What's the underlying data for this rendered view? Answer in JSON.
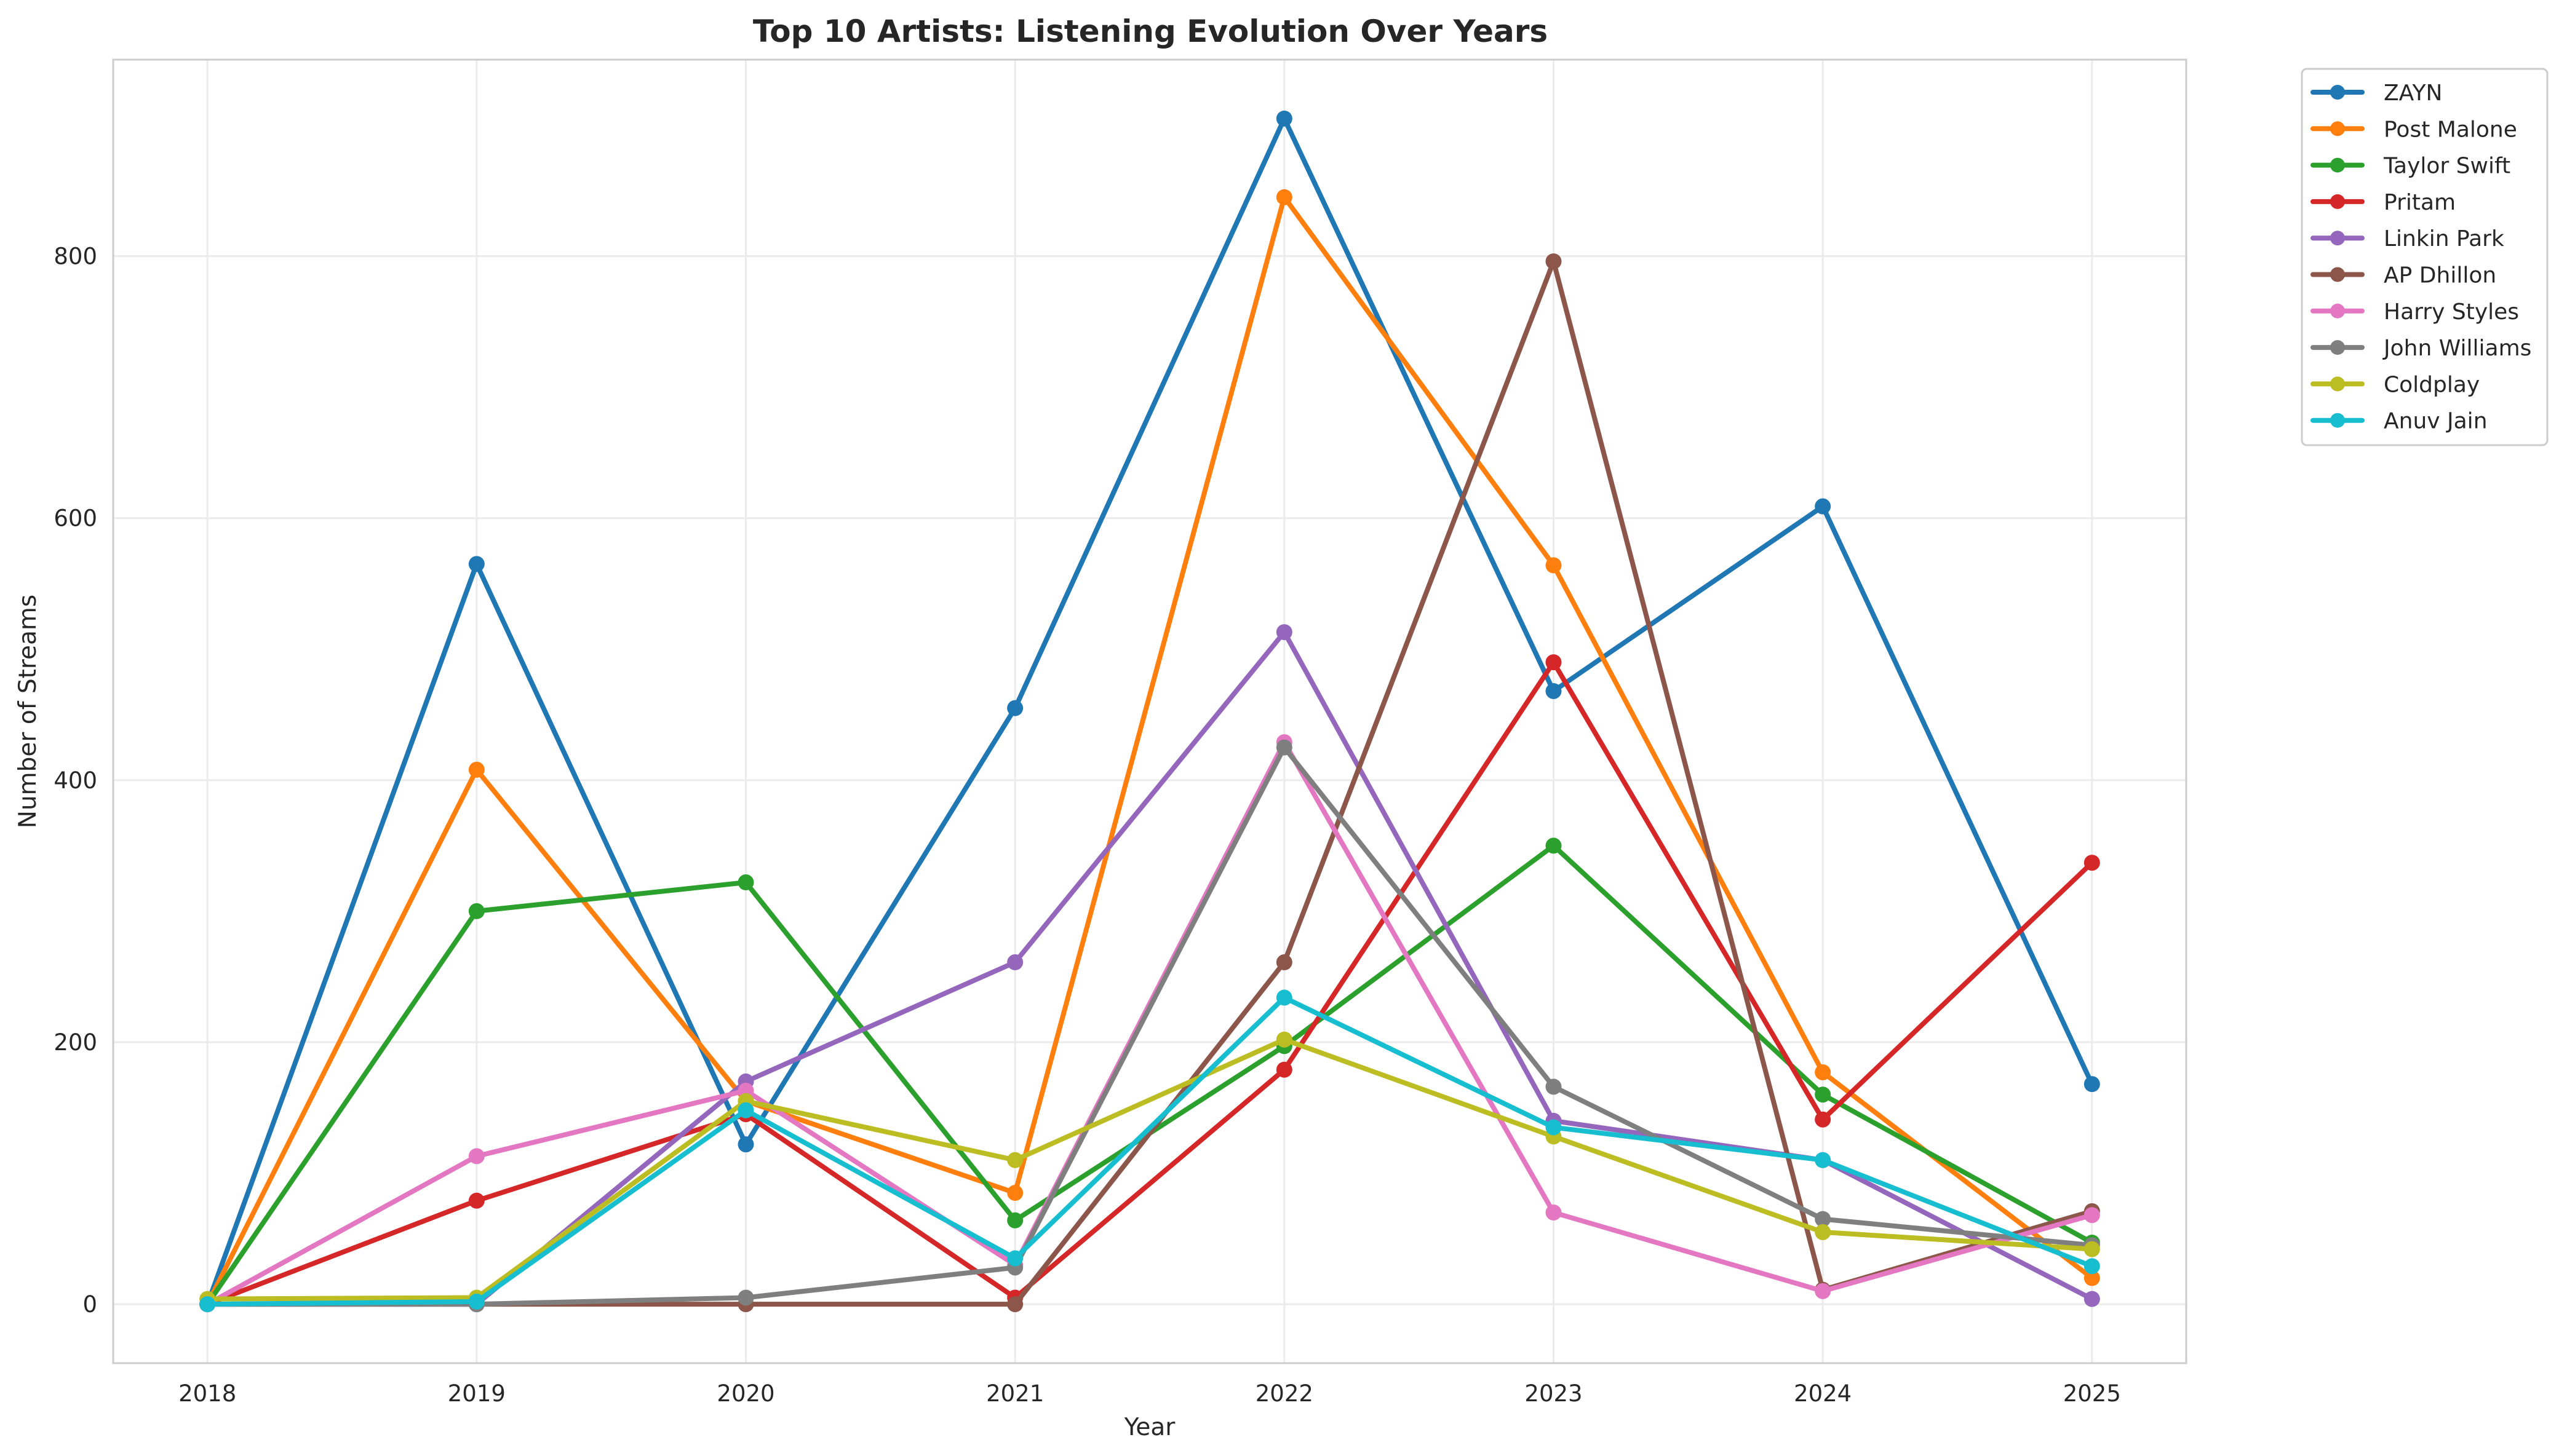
{
  "chart_data": {
    "type": "line",
    "title": "Top 10 Artists: Listening Evolution Over Years",
    "xlabel": "Year",
    "ylabel": "Number of Streams",
    "x": [
      2018,
      2019,
      2020,
      2021,
      2022,
      2023,
      2024,
      2025
    ],
    "x_tick_labels": [
      "2018",
      "2019",
      "2020",
      "2021",
      "2022",
      "2023",
      "2024",
      "2025"
    ],
    "y_ticks": [
      0,
      200,
      400,
      600,
      800
    ],
    "y_tick_labels": [
      "0",
      "200",
      "400",
      "600",
      "800"
    ],
    "xlim": [
      2017.65,
      2025.35
    ],
    "ylim": [
      -45,
      950
    ],
    "grid": true,
    "legend_position": "outside-right-top",
    "series": [
      {
        "name": "ZAYN",
        "color": "#1f77b4",
        "values": [
          0,
          565,
          122,
          455,
          905,
          468,
          609,
          168
        ]
      },
      {
        "name": "Post Malone",
        "color": "#ff7f0e",
        "values": [
          0,
          408,
          155,
          85,
          845,
          564,
          177,
          20
        ]
      },
      {
        "name": "Taylor Swift",
        "color": "#2ca02c",
        "values": [
          0,
          300,
          322,
          64,
          197,
          350,
          160,
          47
        ]
      },
      {
        "name": "Pritam",
        "color": "#d62728",
        "values": [
          0,
          79,
          145,
          5,
          179,
          490,
          141,
          337
        ]
      },
      {
        "name": "Linkin Park",
        "color": "#9467bd",
        "values": [
          0,
          0,
          170,
          261,
          513,
          140,
          110,
          4
        ]
      },
      {
        "name": "AP Dhillon",
        "color": "#8c564b",
        "values": [
          0,
          0,
          0,
          0,
          261,
          796,
          11,
          71
        ]
      },
      {
        "name": "Harry Styles",
        "color": "#e377c2",
        "values": [
          0,
          113,
          163,
          30,
          429,
          70,
          10,
          68
        ]
      },
      {
        "name": "John Williams",
        "color": "#7f7f7f",
        "values": [
          0,
          0,
          5,
          28,
          425,
          166,
          65,
          45
        ]
      },
      {
        "name": "Coldplay",
        "color": "#bcbd22",
        "values": [
          4,
          5,
          155,
          110,
          202,
          128,
          55,
          42
        ]
      },
      {
        "name": "Anuv Jain",
        "color": "#17becf",
        "values": [
          0,
          2,
          148,
          35,
          234,
          135,
          110,
          29
        ]
      }
    ]
  }
}
